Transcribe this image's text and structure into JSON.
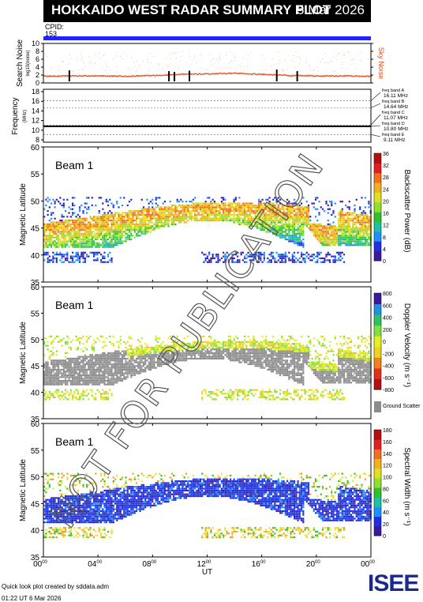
{
  "title": "HOKKAIDO WEST RADAR SUMMARY PLOT",
  "date": "5 Mar 2026",
  "cpid_label": "CPID:",
  "cpid_value": "153",
  "watermark": "NOT FOR PUBLICATION",
  "footer_line1": "Quick look plot created by sddata.adm",
  "footer_line2": "01:22 UT  6 Mar 2026",
  "logo_text": "ISEE",
  "colors": {
    "cpid_bar": "#2222ff",
    "sky_noise": "#e05020",
    "search_noise": "#000000"
  },
  "chart_data": [
    {
      "type": "line",
      "ylabel": "Search Noise",
      "ylabel_sub": "log10(noise)",
      "legend_text": "Sky Noise",
      "ylim": [
        0,
        10
      ],
      "yticks": [
        "0",
        "2",
        "4",
        "6",
        "8",
        "10"
      ],
      "xlim": [
        0,
        24
      ],
      "series": [
        {
          "name": "Sky Noise",
          "x": [
            0,
            2,
            4,
            6,
            8,
            10,
            12,
            14,
            16,
            18,
            20,
            22,
            24
          ],
          "values": [
            1.8,
            1.9,
            1.9,
            1.8,
            2.0,
            2.3,
            2.4,
            2.6,
            2.3,
            2.0,
            1.9,
            1.9,
            1.8
          ]
        }
      ],
      "search_noise_spikes": [
        {
          "x": 1.9,
          "value": 3.2
        },
        {
          "x": 9.2,
          "value": 3.0
        },
        {
          "x": 9.6,
          "value": 2.8
        },
        {
          "x": 10.7,
          "value": 3.1
        },
        {
          "x": 17.1,
          "value": 3.4
        },
        {
          "x": 18.6,
          "value": 3.0
        }
      ]
    },
    {
      "type": "line",
      "ylabel": "Frequency",
      "ylabel_sub": "(MHz)",
      "ylim": [
        7.5,
        18.5
      ],
      "yticks": [
        "8",
        "10",
        "12",
        "14",
        "16",
        "18"
      ],
      "bands": [
        {
          "label": "freq band A",
          "value_label": "16.11 MHz",
          "value": 16.11
        },
        {
          "label": "freq band B",
          "value_label": "14.64 MHz",
          "value": 14.64
        },
        {
          "label": "freq band C",
          "value_label": "11.07 MHz",
          "value": 11.07
        },
        {
          "label": "freq band D",
          "value_label": "10.80 MHz",
          "value": 10.8
        },
        {
          "label": "freq band E",
          "value_label": "9.11 MHz",
          "value": 9.11
        }
      ],
      "operating_frequency": 10.8
    },
    {
      "type": "heatmap",
      "beam_label": "Beam  1",
      "ylabel": "Magnetic Latitude",
      "ylim": [
        35,
        60
      ],
      "yticks": [
        "35",
        "40",
        "45",
        "50",
        "55",
        "60"
      ],
      "colorbar_label": "Backscatter Power (dB)",
      "colorbar_ticks": [
        "0",
        "4",
        "8",
        "12",
        "16",
        "20",
        "24",
        "28",
        "32",
        "36"
      ],
      "colorbar_range": [
        0,
        36
      ],
      "scale": "power"
    },
    {
      "type": "heatmap",
      "beam_label": "Beam  1",
      "ylabel": "Magnetic Latitude",
      "ylim": [
        35,
        60
      ],
      "yticks": [
        "35",
        "40",
        "45",
        "50",
        "55",
        "60"
      ],
      "colorbar_label": "Doppler Velocity (m s⁻¹)",
      "colorbar_ticks": [
        "-800",
        "-600",
        "-400",
        "-200",
        "0",
        "200",
        "400",
        "600",
        "800"
      ],
      "colorbar_range": [
        -800,
        800
      ],
      "ground_scatter_label": "Ground Scatter",
      "scale": "velocity"
    },
    {
      "type": "heatmap",
      "beam_label": "Beam  1",
      "ylabel": "Magnetic Latitude",
      "ylim": [
        35,
        60
      ],
      "yticks": [
        "35",
        "40",
        "45",
        "50",
        "55",
        "60"
      ],
      "colorbar_label": "Spectral Width (m s⁻¹)",
      "colorbar_ticks": [
        "0",
        "20",
        "40",
        "60",
        "80",
        "100",
        "120",
        "140",
        "160",
        "180"
      ],
      "colorbar_range": [
        0,
        180
      ],
      "xlabel": "UT",
      "xticks": [
        "00",
        "04",
        "08",
        "12",
        "16",
        "20",
        "00"
      ],
      "xtick_superscript": "00",
      "xlim": [
        0,
        24
      ],
      "scale": "width"
    }
  ]
}
